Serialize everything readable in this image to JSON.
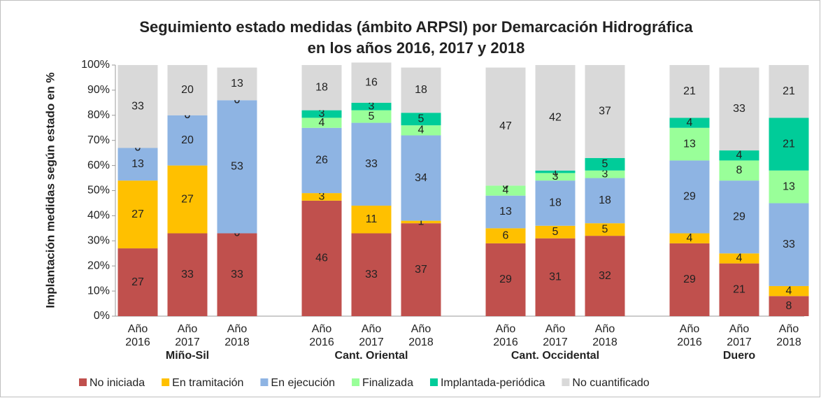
{
  "chart_data": {
    "type": "stacked_bar",
    "title": [
      "Seguimiento estado medidas (ámbito ARPSI) por Demarcación Hidrográfica",
      "en los años 2016, 2017 y 2018"
    ],
    "y_label": "Implantación medidas según estado en  %",
    "groups": [
      "Miño-Sil",
      "Cant. Oriental",
      "Cant. Occidental",
      "Duero"
    ],
    "categories": [
      "Año 2016",
      "Año 2017",
      "Año 2018",
      "Año 2016",
      "Año 2017",
      "Año 2018",
      "Año 2016",
      "Año 2017",
      "Año 2018",
      "Año 2016",
      "Año 2017",
      "Año 2018"
    ],
    "series": [
      {
        "name": "No iniciada",
        "color": "#c0504d",
        "values": [
          27,
          33,
          33,
          46,
          33,
          37,
          29,
          31,
          32,
          29,
          21,
          8
        ]
      },
      {
        "name": "En tramitación",
        "color": "#ffc000",
        "values": [
          27,
          27,
          0,
          3,
          11,
          1,
          6,
          5,
          5,
          4,
          4,
          4
        ]
      },
      {
        "name": "En ejecución",
        "color": "#8eb4e3",
        "values": [
          13,
          20,
          53,
          26,
          33,
          34,
          13,
          18,
          18,
          29,
          29,
          33
        ]
      },
      {
        "name": "Finalizada",
        "color": "#99ff99",
        "values": [
          0,
          0,
          0,
          4,
          5,
          4,
          4,
          3,
          3,
          13,
          8,
          13
        ]
      },
      {
        "name": "Implantada-periódica",
        "color": "#00cc99",
        "values": [
          0,
          0,
          0,
          3,
          3,
          5,
          0,
          1,
          5,
          4,
          4,
          21
        ]
      },
      {
        "name": "No cuantificado",
        "color": "#d9d9d9",
        "values": [
          33,
          20,
          13,
          18,
          16,
          18,
          47,
          42,
          37,
          21,
          33,
          21
        ]
      }
    ],
    "ylim": [
      0,
      100
    ],
    "yticks": [
      {
        "value": 0,
        "label": "0%"
      },
      {
        "value": 10,
        "label": "10%"
      },
      {
        "value": 20,
        "label": "20%"
      },
      {
        "value": 30,
        "label": "30%"
      },
      {
        "value": 40,
        "label": "40%"
      },
      {
        "value": 50,
        "label": "50%"
      },
      {
        "value": 60,
        "label": "60%"
      },
      {
        "value": 70,
        "label": "70%"
      },
      {
        "value": 80,
        "label": "80%"
      },
      {
        "value": 90,
        "label": "90%"
      },
      {
        "value": 100,
        "label": "100%"
      }
    ],
    "legend": "bottom"
  }
}
